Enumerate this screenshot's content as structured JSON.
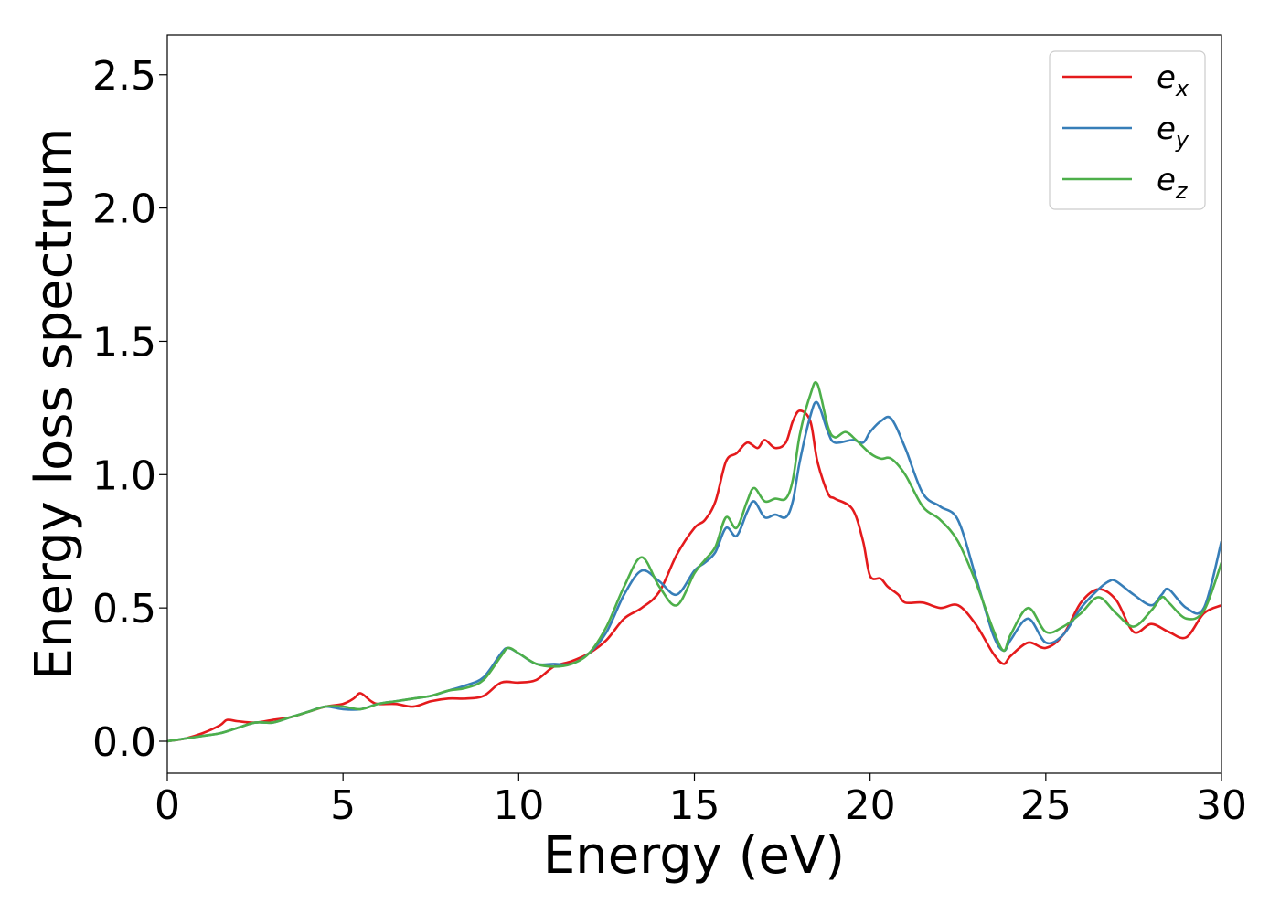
{
  "chart_data": {
    "type": "line",
    "title": "",
    "xlabel": "Energy (eV)",
    "ylabel": "Energy loss spectrum",
    "xlim": [
      0,
      30
    ],
    "ylim": [
      -0.12,
      2.65
    ],
    "xticks": [
      0,
      5,
      10,
      15,
      20,
      25,
      30
    ],
    "xtick_labels": [
      "0",
      "5",
      "10",
      "15",
      "20",
      "25",
      "30"
    ],
    "yticks": [
      0.0,
      0.5,
      1.0,
      1.5,
      2.0,
      2.5
    ],
    "ytick_labels": [
      "0.0",
      "0.5",
      "1.0",
      "1.5",
      "2.0",
      "2.5"
    ],
    "grid": false,
    "legend_position": "top-right",
    "series": [
      {
        "name": "e_x",
        "legend_base": "e",
        "legend_sub": "x",
        "color": "#e41a1c",
        "x": [
          0,
          0.5,
          1.0,
          1.5,
          1.7,
          2.0,
          2.5,
          3.0,
          3.5,
          4.0,
          4.5,
          5.0,
          5.3,
          5.5,
          5.8,
          6.0,
          6.5,
          7.0,
          7.5,
          8.0,
          8.5,
          9.0,
          9.5,
          10.0,
          10.5,
          11.0,
          11.5,
          12.0,
          12.5,
          13.0,
          13.5,
          14.0,
          14.5,
          15.0,
          15.3,
          15.6,
          15.9,
          16.2,
          16.5,
          16.8,
          17.0,
          17.3,
          17.6,
          17.8,
          18.0,
          18.3,
          18.5,
          18.8,
          19.0,
          19.5,
          19.8,
          20.0,
          20.3,
          20.5,
          20.8,
          21.0,
          21.5,
          22.0,
          22.5,
          23.0,
          23.5,
          23.8,
          24.0,
          24.5,
          25.0,
          25.5,
          26.0,
          26.5,
          27.0,
          27.5,
          28.0,
          28.5,
          29.0,
          29.5,
          30.0
        ],
        "y": [
          0.0,
          0.01,
          0.03,
          0.06,
          0.08,
          0.075,
          0.07,
          0.08,
          0.09,
          0.11,
          0.13,
          0.14,
          0.16,
          0.18,
          0.15,
          0.14,
          0.14,
          0.13,
          0.15,
          0.16,
          0.16,
          0.17,
          0.22,
          0.22,
          0.23,
          0.28,
          0.3,
          0.33,
          0.38,
          0.46,
          0.5,
          0.56,
          0.7,
          0.8,
          0.83,
          0.9,
          1.05,
          1.08,
          1.12,
          1.1,
          1.13,
          1.1,
          1.12,
          1.2,
          1.24,
          1.2,
          1.05,
          0.93,
          0.91,
          0.87,
          0.75,
          0.62,
          0.61,
          0.58,
          0.55,
          0.52,
          0.52,
          0.5,
          0.51,
          0.44,
          0.33,
          0.29,
          0.32,
          0.37,
          0.35,
          0.4,
          0.52,
          0.57,
          0.53,
          0.41,
          0.44,
          0.41,
          0.39,
          0.48,
          0.51
        ]
      },
      {
        "name": "e_y",
        "legend_base": "e",
        "legend_sub": "y",
        "color": "#377eb8",
        "x": [
          0,
          0.5,
          1.0,
          1.5,
          2.0,
          2.5,
          3.0,
          3.5,
          4.0,
          4.5,
          5.0,
          5.5,
          6.0,
          6.5,
          7.0,
          7.5,
          8.0,
          8.5,
          9.0,
          9.5,
          9.7,
          10.0,
          10.5,
          11.0,
          11.5,
          12.0,
          12.5,
          13.0,
          13.5,
          14.0,
          14.5,
          15.0,
          15.3,
          15.6,
          15.9,
          16.2,
          16.5,
          16.7,
          17.0,
          17.3,
          17.6,
          17.8,
          18.0,
          18.3,
          18.5,
          18.8,
          19.0,
          19.5,
          19.8,
          20.0,
          20.3,
          20.6,
          21.0,
          21.5,
          22.0,
          22.5,
          23.0,
          23.5,
          23.8,
          24.0,
          24.5,
          25.0,
          25.5,
          26.0,
          26.5,
          26.8,
          27.0,
          27.5,
          28.0,
          28.3,
          28.5,
          29.0,
          29.5,
          30.0
        ],
        "y": [
          0.0,
          0.01,
          0.02,
          0.03,
          0.05,
          0.07,
          0.07,
          0.09,
          0.11,
          0.13,
          0.12,
          0.12,
          0.14,
          0.15,
          0.16,
          0.17,
          0.19,
          0.21,
          0.24,
          0.33,
          0.35,
          0.33,
          0.29,
          0.29,
          0.29,
          0.33,
          0.41,
          0.55,
          0.64,
          0.6,
          0.55,
          0.64,
          0.67,
          0.71,
          0.8,
          0.77,
          0.86,
          0.9,
          0.84,
          0.85,
          0.84,
          0.9,
          1.05,
          1.22,
          1.27,
          1.16,
          1.12,
          1.13,
          1.12,
          1.16,
          1.2,
          1.21,
          1.1,
          0.93,
          0.88,
          0.83,
          0.62,
          0.4,
          0.34,
          0.38,
          0.46,
          0.37,
          0.4,
          0.5,
          0.57,
          0.6,
          0.6,
          0.55,
          0.51,
          0.55,
          0.57,
          0.5,
          0.5,
          0.75
        ]
      },
      {
        "name": "e_z",
        "legend_base": "e",
        "legend_sub": "z",
        "color": "#4daf4a",
        "x": [
          0,
          0.5,
          1.0,
          1.5,
          2.0,
          2.5,
          3.0,
          3.5,
          4.0,
          4.5,
          5.0,
          5.5,
          6.0,
          6.5,
          7.0,
          7.5,
          8.0,
          8.5,
          9.0,
          9.5,
          9.7,
          10.0,
          10.5,
          11.0,
          11.5,
          12.0,
          12.5,
          13.0,
          13.5,
          14.0,
          14.5,
          15.0,
          15.3,
          15.6,
          15.9,
          16.2,
          16.5,
          16.7,
          17.0,
          17.3,
          17.6,
          17.8,
          18.0,
          18.3,
          18.5,
          18.8,
          19.0,
          19.3,
          19.6,
          20.0,
          20.3,
          20.6,
          21.0,
          21.5,
          22.0,
          22.5,
          23.0,
          23.5,
          23.8,
          24.0,
          24.5,
          25.0,
          25.5,
          26.0,
          26.5,
          27.0,
          27.5,
          28.0,
          28.3,
          28.5,
          29.0,
          29.5,
          30.0
        ],
        "y": [
          0.0,
          0.01,
          0.02,
          0.03,
          0.05,
          0.07,
          0.07,
          0.09,
          0.11,
          0.13,
          0.13,
          0.12,
          0.14,
          0.15,
          0.16,
          0.17,
          0.19,
          0.2,
          0.23,
          0.32,
          0.35,
          0.33,
          0.29,
          0.28,
          0.29,
          0.33,
          0.43,
          0.58,
          0.69,
          0.58,
          0.51,
          0.63,
          0.68,
          0.73,
          0.84,
          0.8,
          0.9,
          0.95,
          0.9,
          0.91,
          0.91,
          0.98,
          1.15,
          1.3,
          1.34,
          1.18,
          1.14,
          1.16,
          1.13,
          1.08,
          1.06,
          1.06,
          1.0,
          0.88,
          0.83,
          0.75,
          0.6,
          0.42,
          0.34,
          0.4,
          0.5,
          0.41,
          0.43,
          0.48,
          0.54,
          0.48,
          0.43,
          0.49,
          0.54,
          0.52,
          0.46,
          0.49,
          0.67
        ]
      }
    ]
  }
}
